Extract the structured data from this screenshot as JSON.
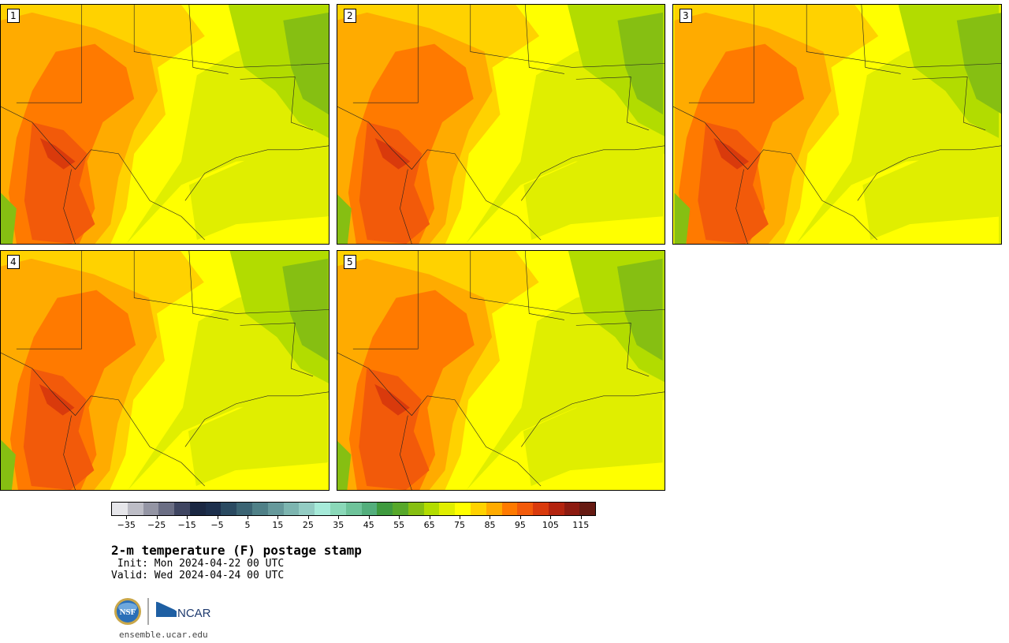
{
  "panels": [
    {
      "label": "1"
    },
    {
      "label": "2"
    },
    {
      "label": "3"
    },
    {
      "label": "4"
    },
    {
      "label": "5"
    }
  ],
  "colorbar": {
    "colors": [
      "#e6e6ea",
      "#bdbdc6",
      "#9495a4",
      "#6b6e84",
      "#3f4561",
      "#1a2742",
      "#1c2f4c",
      "#2a4a61",
      "#3b6473",
      "#4f8087",
      "#66999b",
      "#7db5b0",
      "#93ccc3",
      "#a6ead9",
      "#8ad8b8",
      "#6ec39a",
      "#53ae7c",
      "#3e9a3e",
      "#57a82a",
      "#86bf12",
      "#b2dc00",
      "#e0ee00",
      "#ffff00",
      "#ffd200",
      "#ffab00",
      "#ff7a00",
      "#f25a0a",
      "#d93a0c",
      "#b3230e",
      "#8c1a10",
      "#661a12"
    ],
    "ticks": [
      "−35",
      "−25",
      "−15",
      "−5",
      "5",
      "15",
      "25",
      "35",
      "45",
      "55",
      "65",
      "75",
      "85",
      "95",
      "105",
      "115"
    ],
    "min": -40,
    "max": 120,
    "step": 5
  },
  "title": "2-m temperature (F) postage stamp",
  "init": " Init: Mon 2024-04-22 00 UTC",
  "valid": "Valid: Wed 2024-04-24 00 UTC",
  "logos": {
    "nsf": "NSF",
    "ncar": "NCAR"
  },
  "website": "ensemble.ucar.edu"
}
